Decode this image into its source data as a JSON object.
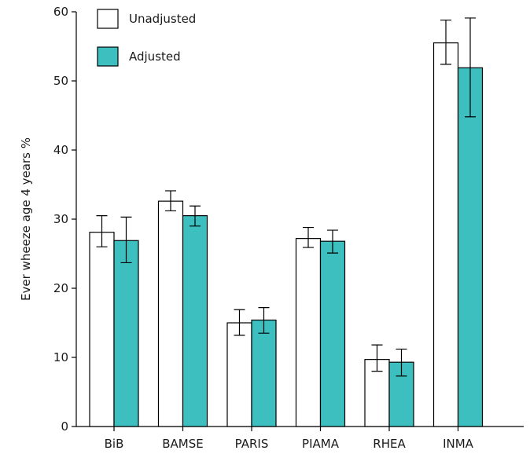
{
  "chart_data": {
    "type": "bar",
    "ylabel": "Ever wheeze age 4 years %",
    "xlabel": "",
    "title": "",
    "ylim": [
      0,
      60
    ],
    "yticks": [
      0,
      10,
      20,
      30,
      40,
      50,
      60
    ],
    "categories": [
      "BiB",
      "BAMSE",
      "PARIS",
      "PIAMA",
      "RHEA",
      "INMA"
    ],
    "series": [
      {
        "name": "Unadjusted",
        "color": "#ffffff",
        "values": [
          28.1,
          32.6,
          15.0,
          27.2,
          9.7,
          55.5
        ],
        "ci_low": [
          26.0,
          31.2,
          13.2,
          25.9,
          8.0,
          52.4
        ],
        "ci_high": [
          30.5,
          34.1,
          16.9,
          28.8,
          11.8,
          58.8
        ]
      },
      {
        "name": "Adjusted",
        "color": "#3dbfbf",
        "values": [
          26.9,
          30.5,
          15.4,
          26.8,
          9.3,
          51.9
        ],
        "ci_low": [
          23.7,
          29.0,
          13.5,
          25.1,
          7.3,
          44.8
        ],
        "ci_high": [
          30.3,
          31.9,
          17.2,
          28.4,
          11.2,
          59.1
        ]
      }
    ],
    "legend_position": "top-left"
  }
}
